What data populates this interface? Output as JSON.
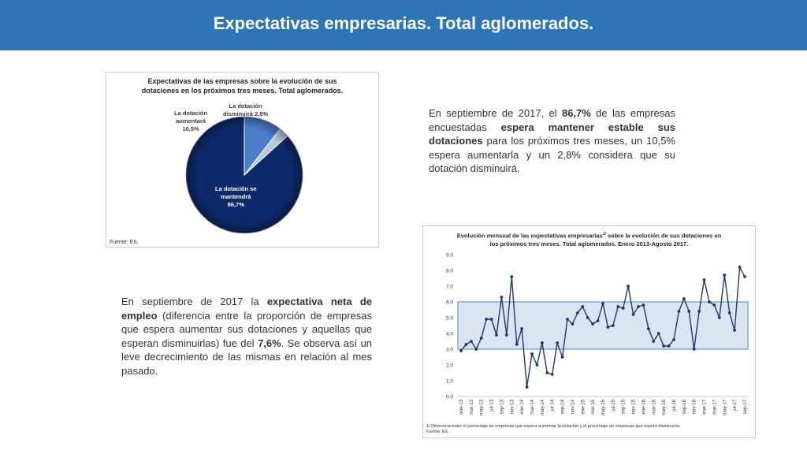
{
  "page": {
    "title": "Expectativas empresarias. Total aglomerados.",
    "paragraph1": [
      {
        "t": "En septiembre de 2017, el ",
        "b": false
      },
      {
        "t": "86,7%",
        "b": true
      },
      {
        "t": " de las empresas encuestadas ",
        "b": false
      },
      {
        "t": "espera mantener estable sus dotaciones",
        "b": true
      },
      {
        "t": " para los próximos tres meses, un 10,5% espera aumentarla y un 2,8% considera que su dotación disminuirá.",
        "b": false
      }
    ],
    "paragraph2": [
      {
        "t": "En septiembre de 2017 la ",
        "b": false
      },
      {
        "t": "expectativa neta de empleo",
        "b": true
      },
      {
        "t": " (diferencia entre la proporción de empresas que espera aumentar sus dotaciones y aquellas que esperan disminuirlas) fue del ",
        "b": false
      },
      {
        "t": "7,6%",
        "b": true
      },
      {
        "t": ". Se observa así un leve decrecimiento de las mismas en relación al mes pasado.",
        "b": false
      }
    ]
  },
  "colors": {
    "header": "#2e75b6",
    "pie_main": "#0e2a6b",
    "pie_mid": "#4a7ec9",
    "pie_small": "#b7c6e2",
    "line": "#1f3864",
    "band_fill": "#dbe5f1",
    "band_edge": "#4a86c8"
  },
  "chart_data": [
    {
      "type": "pie",
      "title": "Expectativas de las empresas sobre la evolución de sus dotaciones en los próximos tres meses. Total aglomerados.",
      "source": "Fuente: EIL",
      "slices": [
        {
          "label_lines": [
            "La dotación se",
            "mantendrá",
            "86,7%"
          ],
          "value": 86.7
        },
        {
          "label_lines": [
            "La dotación",
            "aumentará",
            "10,5%"
          ],
          "value": 10.5
        },
        {
          "label_lines": [
            "La dotación",
            "disminuirá 2,8%"
          ],
          "value": 2.8
        }
      ]
    },
    {
      "type": "line",
      "title_lines": [
        "Evolución mensual de las expectativas empresarias",
        "los próximos tres meses. Total aglomerados. Enero 2013-Agosto 2017."
      ],
      "title_sup": "1/",
      "title_after": " sobre la evolución de sus dotaciones en",
      "ylim": [
        0,
        9
      ],
      "yticks": [
        "0.0",
        "1.0",
        "2.0",
        "3.0",
        "4.0",
        "5.0",
        "6.0",
        "7.0",
        "8.0",
        "9.0"
      ],
      "band": [
        3.0,
        6.0
      ],
      "x_tick_labels": [
        "ene-13",
        "mar-13",
        "may-13",
        "jul-13",
        "sep-13",
        "nov-13",
        "ene-14",
        "mar-14",
        "may-14",
        "jul-14",
        "sep-14",
        "nov-14",
        "ene-15",
        "mar-15",
        "may-15",
        "jul-15",
        "sep-15",
        "nov-15",
        "ene-16",
        "mar-16",
        "may-16",
        "jul-16",
        "sep-16",
        "nov-16",
        "ene-17",
        "mar-17",
        "may-17",
        "jul-17",
        "sep-17"
      ],
      "values": [
        2.9,
        3.3,
        3.5,
        3.0,
        3.7,
        4.9,
        4.9,
        3.9,
        6.3,
        3.9,
        7.6,
        3.3,
        4.3,
        0.6,
        2.7,
        2.0,
        3.4,
        1.5,
        1.4,
        3.4,
        2.5,
        4.9,
        4.6,
        5.3,
        5.7,
        5.0,
        4.6,
        4.8,
        5.9,
        4.4,
        4.5,
        5.7,
        5.6,
        7.0,
        5.2,
        5.7,
        5.8,
        4.3,
        3.5,
        4.0,
        3.2,
        3.2,
        3.6,
        5.4,
        6.2,
        5.4,
        3.0,
        5.4,
        7.4,
        6.0,
        5.8,
        5.0,
        7.7,
        5.3,
        4.2,
        8.2,
        7.6
      ],
      "footnotes": [
        "1/ Diferencia entre el porcentaje de empresas que espera aumentar la dotación y el procentaje de empresas que espera disminuiría.",
        "Fuente: EIL"
      ]
    }
  ]
}
